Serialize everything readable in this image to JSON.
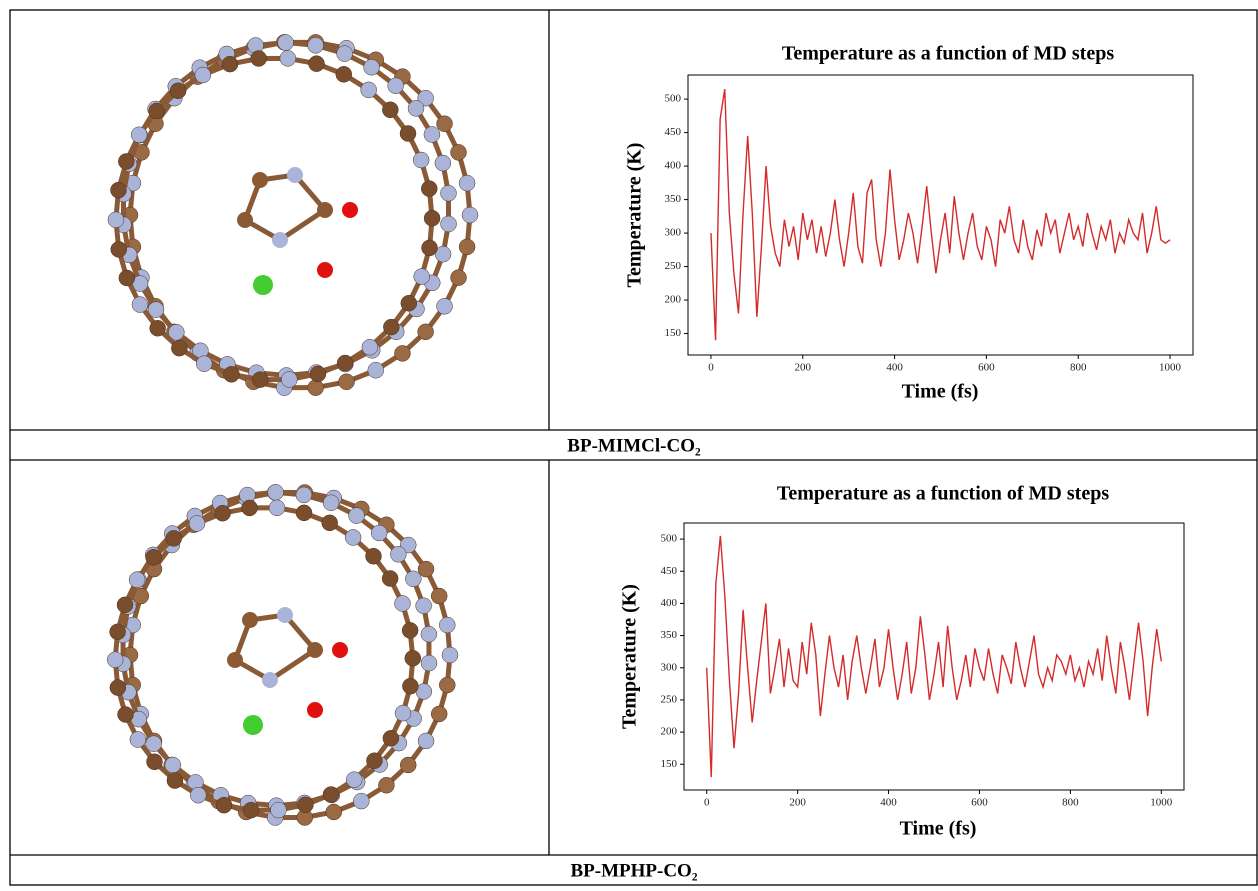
{
  "chart_data": [
    {
      "type": "line",
      "title": "Temperature as a function of MD steps",
      "x_label": "Time (fs)",
      "y_label": "Temperature (K)",
      "color": "#d42a2a",
      "x": [
        0,
        10,
        20,
        30,
        40,
        50,
        60,
        70,
        80,
        90,
        100,
        110,
        120,
        130,
        140,
        150,
        160,
        170,
        180,
        190,
        200,
        210,
        220,
        230,
        240,
        250,
        260,
        270,
        280,
        290,
        300,
        310,
        320,
        330,
        340,
        350,
        360,
        370,
        380,
        390,
        400,
        410,
        420,
        430,
        440,
        450,
        460,
        470,
        480,
        490,
        500,
        510,
        520,
        530,
        540,
        550,
        560,
        570,
        580,
        590,
        600,
        610,
        620,
        630,
        640,
        650,
        660,
        670,
        680,
        690,
        700,
        710,
        720,
        730,
        740,
        750,
        760,
        770,
        780,
        790,
        800,
        810,
        820,
        830,
        840,
        850,
        860,
        870,
        880,
        890,
        900,
        910,
        920,
        930,
        940,
        950,
        960,
        970,
        980,
        990,
        1000
      ],
      "values": [
        300,
        140,
        470,
        515,
        330,
        240,
        180,
        330,
        445,
        330,
        175,
        280,
        400,
        310,
        270,
        250,
        320,
        280,
        310,
        260,
        330,
        290,
        320,
        270,
        310,
        265,
        300,
        350,
        290,
        250,
        300,
        360,
        280,
        255,
        360,
        380,
        290,
        250,
        300,
        395,
        320,
        260,
        290,
        330,
        300,
        255,
        310,
        370,
        300,
        240,
        290,
        330,
        270,
        355,
        300,
        260,
        300,
        330,
        280,
        260,
        310,
        290,
        250,
        320,
        300,
        340,
        290,
        270,
        320,
        280,
        260,
        305,
        280,
        330,
        300,
        320,
        270,
        300,
        330,
        290,
        310,
        280,
        330,
        300,
        275,
        310,
        290,
        320,
        270,
        300,
        285,
        320,
        300,
        290,
        330,
        270,
        300,
        340,
        290,
        285,
        290
      ],
      "xlim": [
        -50,
        1050
      ],
      "ylim": [
        118,
        536
      ],
      "xticks": [
        0,
        200,
        400,
        600,
        800,
        1000
      ],
      "yticks": [
        150,
        200,
        250,
        300,
        350,
        400,
        450,
        500
      ]
    },
    {
      "type": "line",
      "title": "Temperature as a function of MD steps",
      "x_label": "Time (fs)",
      "y_label": "Temperature (K)",
      "color": "#d42a2a",
      "x": [
        0,
        10,
        20,
        30,
        40,
        50,
        60,
        70,
        80,
        90,
        100,
        110,
        120,
        130,
        140,
        150,
        160,
        170,
        180,
        190,
        200,
        210,
        220,
        230,
        240,
        250,
        260,
        270,
        280,
        290,
        300,
        310,
        320,
        330,
        340,
        350,
        360,
        370,
        380,
        390,
        400,
        410,
        420,
        430,
        440,
        450,
        460,
        470,
        480,
        490,
        500,
        510,
        520,
        530,
        540,
        550,
        560,
        570,
        580,
        590,
        600,
        610,
        620,
        630,
        640,
        650,
        660,
        670,
        680,
        690,
        700,
        710,
        720,
        730,
        740,
        750,
        760,
        770,
        780,
        790,
        800,
        810,
        820,
        830,
        840,
        850,
        860,
        870,
        880,
        890,
        900,
        910,
        920,
        930,
        940,
        950,
        960,
        970,
        980,
        990,
        1000
      ],
      "values": [
        300,
        130,
        430,
        505,
        410,
        280,
        175,
        260,
        390,
        300,
        215,
        280,
        340,
        400,
        260,
        300,
        345,
        270,
        330,
        280,
        270,
        340,
        290,
        370,
        320,
        225,
        290,
        350,
        300,
        270,
        320,
        250,
        310,
        350,
        300,
        260,
        300,
        345,
        270,
        300,
        360,
        300,
        250,
        290,
        340,
        260,
        300,
        380,
        320,
        250,
        290,
        340,
        270,
        365,
        300,
        250,
        280,
        320,
        270,
        330,
        300,
        280,
        330,
        290,
        260,
        320,
        300,
        275,
        340,
        300,
        270,
        310,
        350,
        290,
        270,
        300,
        280,
        320,
        310,
        290,
        320,
        280,
        300,
        270,
        310,
        290,
        330,
        280,
        350,
        300,
        260,
        340,
        300,
        250,
        310,
        370,
        310,
        225,
        300,
        360,
        310
      ],
      "xlim": [
        -50,
        1050
      ],
      "ylim": [
        110,
        525
      ],
      "xticks": [
        0,
        200,
        400,
        600,
        800,
        1000
      ],
      "yticks": [
        150,
        200,
        250,
        300,
        350,
        400,
        450,
        500
      ]
    }
  ],
  "captions": [
    "BP-MIMCl-CO₂",
    "BP-MPHP-CO₂"
  ]
}
